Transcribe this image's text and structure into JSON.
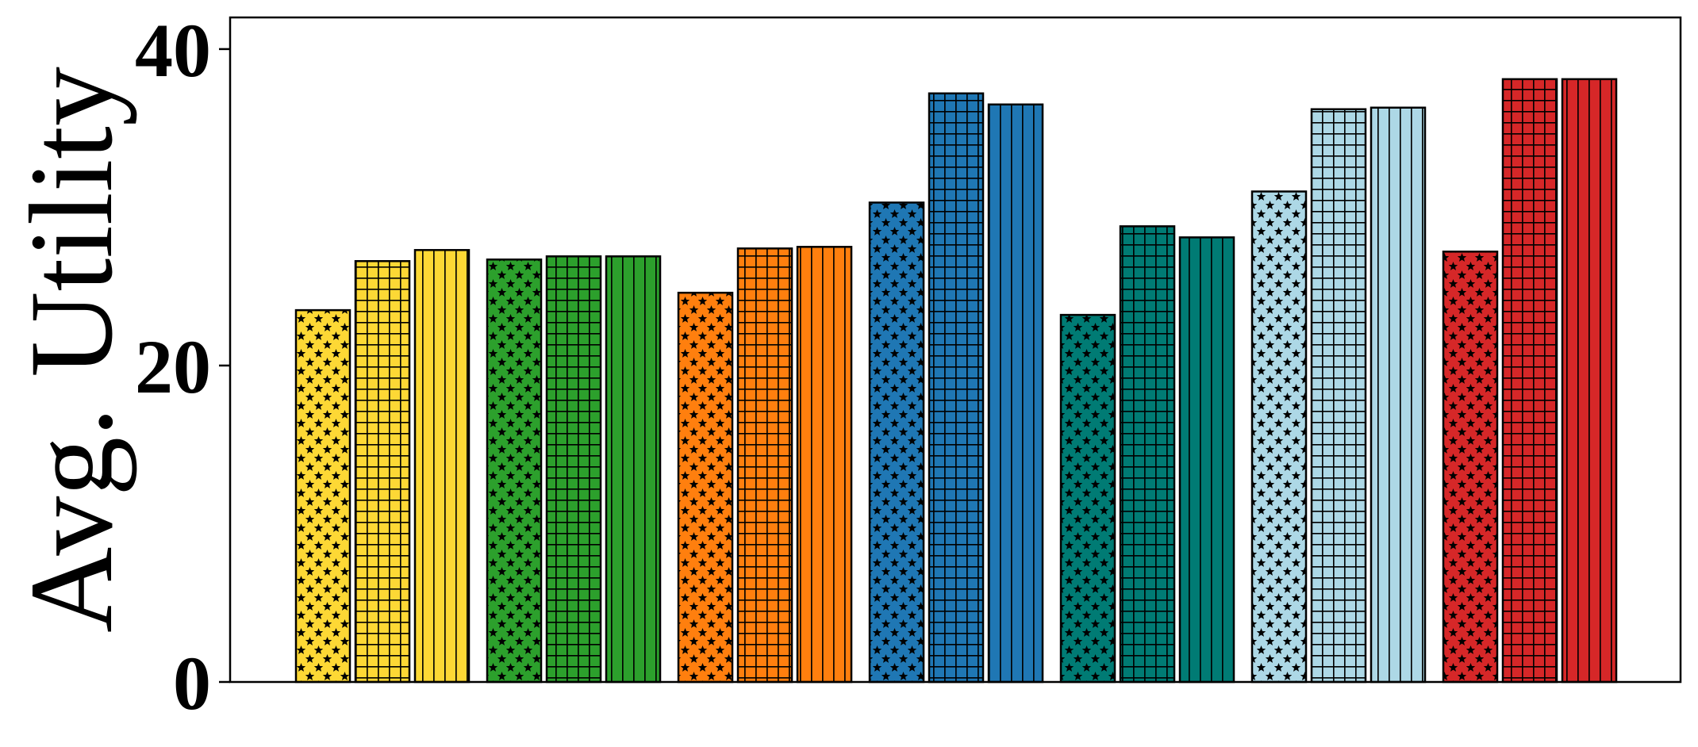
{
  "chart_data": {
    "type": "bar",
    "title": "",
    "xlabel": "",
    "ylabel": "Avg. Utility",
    "ylim": [
      0,
      42
    ],
    "yticks": [
      0,
      20,
      40
    ],
    "grid": false,
    "legend": "none",
    "groups": [
      {
        "color": "#FDD835",
        "values": [
          23.5,
          26.6,
          27.3
        ]
      },
      {
        "color": "#2CA02C",
        "values": [
          26.7,
          26.9,
          26.9
        ]
      },
      {
        "color": "#FF7F0E",
        "values": [
          24.6,
          27.4,
          27.5
        ]
      },
      {
        "color": "#1F77B4",
        "values": [
          30.3,
          37.2,
          36.5
        ]
      },
      {
        "color": "#007B74",
        "values": [
          23.2,
          28.8,
          28.1
        ]
      },
      {
        "color": "#ADD8E6",
        "values": [
          31.0,
          36.2,
          36.3
        ]
      },
      {
        "color": "#D62728",
        "values": [
          27.2,
          38.1,
          38.1
        ]
      }
    ],
    "hatch_order": [
      "star",
      "grid",
      "vertical"
    ]
  }
}
